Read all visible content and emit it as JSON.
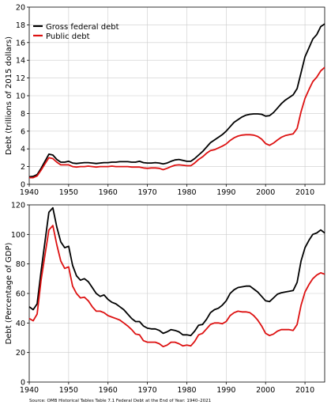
{
  "colors": {
    "gross": "#000000",
    "public": "#dd1111",
    "grid": "#cccccc"
  },
  "source": "Source: OMB Historical Tables Table 7.1 Federal Debt at the End of Year: 1940–2021",
  "chart_data": [
    {
      "type": "line",
      "ylabel": "Debt (trillions of 2015 dollars)",
      "xlim": [
        1940,
        2015
      ],
      "ylim": [
        0,
        20
      ],
      "xticks": [
        "1940",
        "1950",
        "1960",
        "1970",
        "1980",
        "1990",
        "2000",
        "2010"
      ],
      "yticks": [
        "0",
        "2",
        "4",
        "6",
        "8",
        "10",
        "12",
        "14",
        "16",
        "18",
        "20"
      ],
      "grid": true,
      "legend": "top-left",
      "x": [
        1940,
        1941,
        1942,
        1943,
        1944,
        1945,
        1946,
        1947,
        1948,
        1949,
        1950,
        1951,
        1952,
        1953,
        1954,
        1955,
        1956,
        1957,
        1958,
        1959,
        1960,
        1961,
        1962,
        1963,
        1964,
        1965,
        1966,
        1967,
        1968,
        1969,
        1970,
        1971,
        1972,
        1973,
        1974,
        1975,
        1976,
        1977,
        1978,
        1979,
        1980,
        1981,
        1982,
        1983,
        1984,
        1985,
        1986,
        1987,
        1988,
        1989,
        1990,
        1991,
        1992,
        1993,
        1994,
        1995,
        1996,
        1997,
        1998,
        1999,
        2000,
        2001,
        2002,
        2003,
        2004,
        2005,
        2006,
        2007,
        2008,
        2009,
        2010,
        2011,
        2012,
        2013,
        2014,
        2015
      ],
      "series": [
        {
          "name": "Gross federal debt",
          "color_key": "gross",
          "values": [
            0.85,
            0.9,
            1.1,
            1.8,
            2.6,
            3.4,
            3.3,
            2.8,
            2.5,
            2.5,
            2.6,
            2.4,
            2.35,
            2.4,
            2.45,
            2.45,
            2.4,
            2.35,
            2.4,
            2.45,
            2.45,
            2.5,
            2.5,
            2.55,
            2.55,
            2.55,
            2.5,
            2.5,
            2.6,
            2.45,
            2.4,
            2.4,
            2.45,
            2.4,
            2.3,
            2.4,
            2.6,
            2.75,
            2.8,
            2.7,
            2.6,
            2.6,
            2.9,
            3.3,
            3.7,
            4.2,
            4.7,
            5.0,
            5.3,
            5.6,
            6.0,
            6.5,
            7.0,
            7.3,
            7.6,
            7.8,
            7.9,
            7.95,
            7.95,
            7.9,
            7.7,
            7.75,
            8.1,
            8.6,
            9.1,
            9.5,
            9.8,
            10.1,
            10.8,
            12.6,
            14.4,
            15.4,
            16.4,
            16.9,
            17.8,
            18.1
          ]
        },
        {
          "name": "Public debt",
          "color_key": "public",
          "values": [
            0.75,
            0.75,
            0.95,
            1.6,
            2.3,
            3.0,
            2.9,
            2.5,
            2.2,
            2.2,
            2.2,
            2.0,
            1.95,
            2.0,
            2.0,
            2.05,
            2.0,
            1.95,
            2.0,
            2.0,
            2.0,
            2.05,
            2.0,
            2.0,
            2.0,
            2.0,
            1.95,
            1.95,
            1.95,
            1.85,
            1.8,
            1.85,
            1.85,
            1.8,
            1.65,
            1.8,
            2.0,
            2.15,
            2.2,
            2.15,
            2.1,
            2.1,
            2.4,
            2.8,
            3.1,
            3.5,
            3.8,
            3.9,
            4.1,
            4.3,
            4.55,
            4.95,
            5.25,
            5.45,
            5.55,
            5.6,
            5.6,
            5.55,
            5.4,
            5.1,
            4.6,
            4.4,
            4.65,
            5.0,
            5.3,
            5.5,
            5.6,
            5.7,
            6.3,
            8.2,
            9.7,
            10.7,
            11.6,
            12.1,
            12.8,
            13.2
          ]
        }
      ]
    },
    {
      "type": "line",
      "ylabel": "Debt (Percentage of GDP)",
      "xlim": [
        1940,
        2015
      ],
      "ylim": [
        0,
        120
      ],
      "xticks": [
        "1940",
        "1950",
        "1960",
        "1970",
        "1980",
        "1990",
        "2000",
        "2010"
      ],
      "yticks": [
        "0",
        "20",
        "40",
        "60",
        "80",
        "100",
        "120"
      ],
      "grid": true,
      "x": [
        1940,
        1941,
        1942,
        1943,
        1944,
        1945,
        1946,
        1947,
        1948,
        1949,
        1950,
        1951,
        1952,
        1953,
        1954,
        1955,
        1956,
        1957,
        1958,
        1959,
        1960,
        1961,
        1962,
        1963,
        1964,
        1965,
        1966,
        1967,
        1968,
        1969,
        1970,
        1971,
        1972,
        1973,
        1974,
        1975,
        1976,
        1977,
        1978,
        1979,
        1980,
        1981,
        1982,
        1983,
        1984,
        1985,
        1986,
        1987,
        1988,
        1989,
        1990,
        1991,
        1992,
        1993,
        1994,
        1995,
        1996,
        1997,
        1998,
        1999,
        2000,
        2001,
        2002,
        2003,
        2004,
        2005,
        2006,
        2007,
        2008,
        2009,
        2010,
        2011,
        2012,
        2013,
        2014,
        2015
      ],
      "series": [
        {
          "name": "Gross federal debt",
          "color_key": "gross",
          "values": [
            51,
            49,
            53,
            75,
            95,
            115,
            118,
            105,
            95,
            91,
            92,
            79,
            72,
            69,
            70,
            68,
            64,
            60,
            58,
            59,
            56,
            54,
            53,
            51,
            49,
            46,
            43,
            41,
            41,
            38,
            36.5,
            36,
            36,
            35,
            33,
            34,
            35.5,
            35,
            34,
            32,
            32,
            31.5,
            34.5,
            38.5,
            39,
            42.5,
            47,
            49,
            50,
            52,
            55,
            60,
            62.5,
            64,
            64.5,
            65,
            65,
            63,
            61,
            58,
            55,
            54.5,
            57,
            59.5,
            60.5,
            61,
            61.5,
            62,
            67.5,
            82,
            91,
            96,
            100,
            101,
            103,
            101
          ]
        },
        {
          "name": "Public debt",
          "color_key": "public",
          "values": [
            43,
            41.5,
            46,
            69,
            86,
            103,
            106,
            93,
            82,
            77,
            78,
            65,
            60,
            57,
            57.5,
            55,
            51,
            48,
            48,
            47,
            45,
            44,
            43,
            42,
            40,
            38,
            35.5,
            32.5,
            32,
            28,
            27,
            27,
            27,
            26,
            24,
            25,
            27,
            27,
            26,
            24.5,
            25,
            24.5,
            27.5,
            32,
            33,
            36,
            39,
            40,
            40,
            39.5,
            41,
            45,
            47,
            48,
            47.5,
            47.5,
            47,
            45,
            42,
            38,
            33,
            31.5,
            32.5,
            34.5,
            35.5,
            35.5,
            35.5,
            35,
            39,
            52,
            61,
            66,
            70,
            72.5,
            74,
            73
          ]
        }
      ]
    }
  ]
}
